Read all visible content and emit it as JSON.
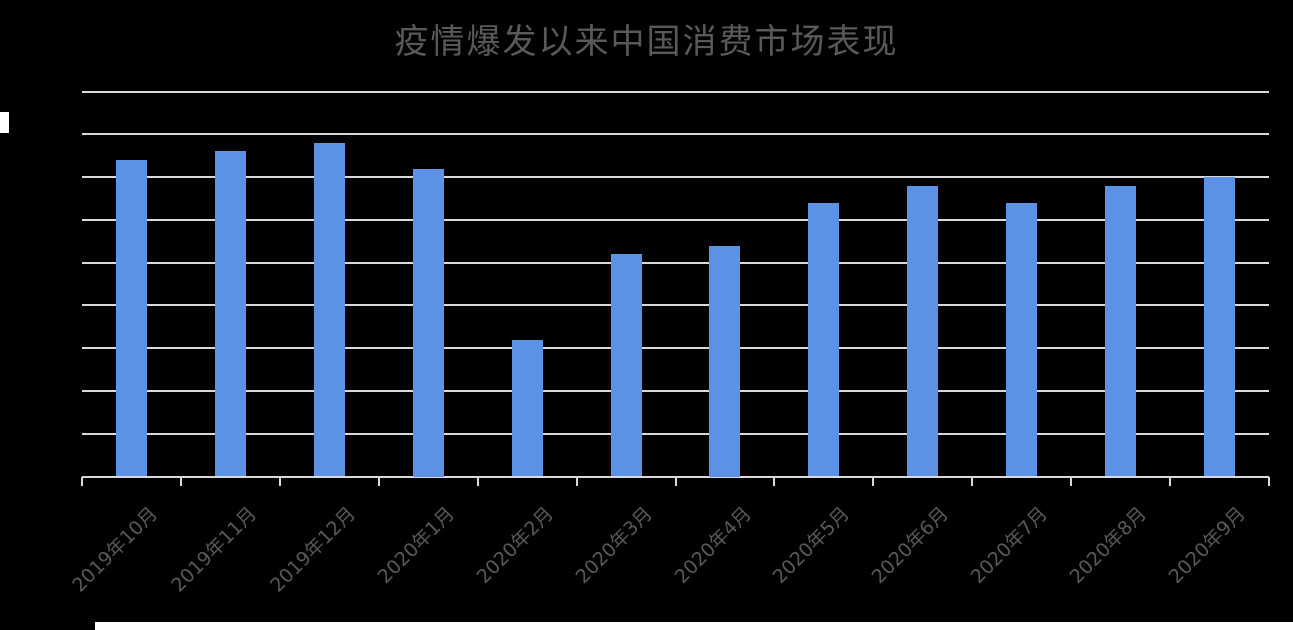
{
  "chart": {
    "title": "疫情爆发以来中国消费市场表现"
  },
  "chart_data": {
    "type": "bar",
    "title": "疫情爆发以来中国消费市场表现",
    "categories": [
      "2019年10月",
      "2019年11月",
      "2019年12月",
      "2020年1月",
      "2020年2月",
      "2020年3月",
      "2020年4月",
      "2020年5月",
      "2020年6月",
      "2020年7月",
      "2020年8月",
      "2020年9月"
    ],
    "values": [
      3.7,
      3.8,
      3.9,
      3.6,
      1.6,
      2.6,
      2.7,
      3.2,
      3.4,
      3.2,
      3.4,
      3.5
    ],
    "xlabel": "",
    "ylabel": "",
    "ylim": [
      0,
      4.5
    ],
    "gridline_step": 0.5,
    "y_tick_labels_visible": false,
    "grid": true,
    "legend": false,
    "x_label_rotation_deg": -45,
    "colors": {
      "background": "#000000",
      "bar": "#5c92e5",
      "gridline": "#d9d9d9",
      "axis": "#d9d9d9",
      "title_text": "#595959",
      "axis_label_text": "#595959",
      "edge_artifact": "#ffffff"
    }
  },
  "artifacts": {
    "left_edge_square": "white fragment at left edge",
    "bottom_strip": "white strip along bottom edge"
  }
}
